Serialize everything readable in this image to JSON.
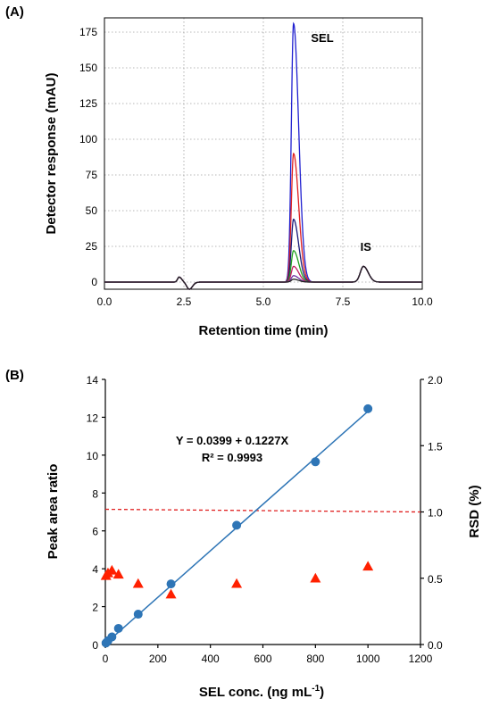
{
  "chart_data": [
    {
      "panel_label": "(A)",
      "type": "line",
      "xlabel": "Retention time (min)",
      "ylabel": "Detector response (mAU)",
      "xlim": [
        0,
        10
      ],
      "ylim": [
        -5,
        185
      ],
      "xticks": [
        0.0,
        2.5,
        5.0,
        7.5,
        10.0
      ],
      "xtick_labels": [
        "0.0",
        "2.5",
        "5.0",
        "7.5",
        "10.0"
      ],
      "yticks": [
        0,
        25,
        50,
        75,
        100,
        125,
        150,
        175
      ],
      "ytick_labels": [
        "0",
        "25",
        "50",
        "75",
        "100",
        "125",
        "150",
        "175"
      ],
      "grid": true,
      "annotations": [
        {
          "text": "SEL",
          "x": 6.5,
          "y": 168
        },
        {
          "text": "IS",
          "x": 8.05,
          "y": 22
        }
      ],
      "solvent_front": {
        "x": 2.35,
        "peak": 3.5,
        "dip": -5
      },
      "sel_peak": {
        "rt": 5.95
      },
      "is_peak": {
        "rt": 8.15,
        "height": 11
      },
      "series": [
        {
          "color": "#2020d0",
          "values": {
            "sel_height": 181
          }
        },
        {
          "color": "#e02020",
          "values": {
            "sel_height": 90
          }
        },
        {
          "color": "#1a1a7a",
          "values": {
            "sel_height": 44
          }
        },
        {
          "color": "#20a020",
          "values": {
            "sel_height": 22
          }
        },
        {
          "color": "#c02060",
          "values": {
            "sel_height": 11
          }
        },
        {
          "color": "#7030a0",
          "values": {
            "sel_height": 4.5
          }
        },
        {
          "color": "#202020",
          "values": {
            "sel_height": 2
          }
        }
      ]
    },
    {
      "panel_label": "(B)",
      "type": "scatter",
      "xlabel": "SEL conc. (ng mL",
      "xlabel_sup": "-1",
      "xlabel_end": ")",
      "ylabel": "Peak area ratio",
      "y2label": "RSD (%)",
      "xlim": [
        0,
        1200
      ],
      "ylim": [
        0,
        14
      ],
      "y2lim": [
        0,
        2.0
      ],
      "xticks": [
        0,
        200,
        400,
        600,
        800,
        1000,
        1200
      ],
      "xtick_labels": [
        "0",
        "200",
        "400",
        "600",
        "800",
        "1000",
        "1200"
      ],
      "yticks": [
        0,
        2,
        4,
        6,
        8,
        10,
        12,
        14
      ],
      "ytick_labels": [
        "0",
        "2",
        "4",
        "6",
        "8",
        "10",
        "12",
        "14"
      ],
      "y2ticks": [
        0,
        0.5,
        1.0,
        1.5,
        2.0
      ],
      "y2tick_labels": [
        "0.0",
        "0.5",
        "1.0",
        "1.5",
        "2.0"
      ],
      "equation": "Y = 0.0399 + 0.1227X",
      "r_squared": "R² = 0.9993",
      "regression": {
        "intercept": 0.0399,
        "slope_per_100": 1.227,
        "x_range": [
          0,
          1000
        ],
        "color": "#2e75b6"
      },
      "reference_line": {
        "axis": "y2",
        "y_start": 1.02,
        "y_end": 1.0,
        "color": "#e02020",
        "style": "dashed"
      },
      "series": [
        {
          "axis": "y",
          "marker": "circle",
          "color": "#2e75b6",
          "x": [
            2.5,
            10,
            25,
            50,
            125,
            250,
            500,
            800,
            1000
          ],
          "y": [
            0.08,
            0.2,
            0.4,
            0.85,
            1.6,
            3.2,
            6.3,
            9.65,
            12.45
          ]
        },
        {
          "axis": "y2",
          "marker": "triangle",
          "color": "#ff2000",
          "x": [
            2.5,
            10,
            25,
            50,
            125,
            250,
            500,
            800,
            1000
          ],
          "y": [
            0.52,
            0.54,
            0.56,
            0.53,
            0.46,
            0.38,
            0.46,
            0.5,
            0.59
          ]
        }
      ]
    }
  ]
}
